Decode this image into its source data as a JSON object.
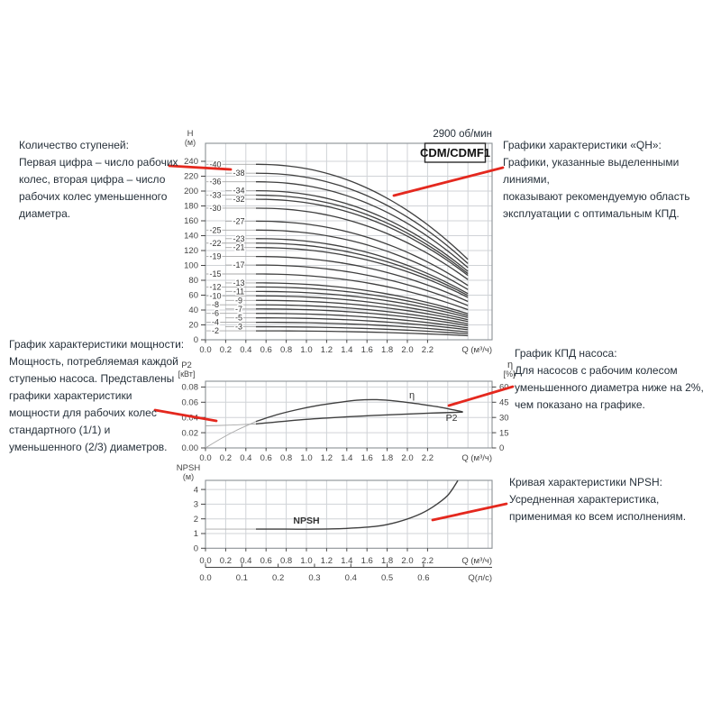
{
  "colors": {
    "red": "#e4281e",
    "curve": "#3f3f3f",
    "curve_light": "#a8a8a8",
    "grid": "#d0d3d7",
    "frame": "#8a8f94",
    "tick_text": "#444444",
    "annotation_text": "#26303a"
  },
  "annotations": {
    "stages": "Количество ступеней:\nПервая цифра – число рабочих\nколес, вторая цифра – число\nрабочих колес уменьшенного\nдиаметра.",
    "qh": "Графики характеристики «QH»:\nГрафики, указанные выделенными линиями,\nпоказывают рекомендуемую область\nэксплуатации с оптимальным КПД.",
    "power": "График характеристики мощности:\nМощность, потребляемая каждой\nступенью насоса. Представлены\nграфики характеристики\nмощности для рабочих колес\nстандартного (1/1) и\nуменьшенного (2/3) диаметров.",
    "efficiency": "График КПД насоса:\nДля насосов с рабочим колесом\nуменьшенного диаметра ниже на 2%,\nчем показано на графике.",
    "npsh": "Кривая характеристики NPSH:\nУсредненная характеристика,\nприменимая ко всем исполнениям."
  },
  "chart_data": [
    {
      "id": "qh",
      "type": "line",
      "title": "CDM/CDMF1",
      "speed_label": "2900 об/мин",
      "xlabel": "Q (м³/ч)",
      "ylabel": "H",
      "ylabel_unit": "(м)",
      "xlim": [
        0,
        2.84
      ],
      "ylim": [
        0,
        264
      ],
      "grid": true,
      "x_ticks": [
        "0.0",
        "0.2",
        "0.4",
        "0.6",
        "0.8",
        "1.0",
        "1.2",
        "1.4",
        "1.6",
        "1.8",
        "2.0",
        "2.2"
      ],
      "y_ticks": [
        0,
        20,
        40,
        60,
        80,
        100,
        120,
        140,
        160,
        180,
        200,
        220,
        240
      ],
      "curve_q_range": [
        0.5,
        2.6
      ],
      "series": [
        {
          "label": "-40",
          "column": "A",
          "h_start": 236,
          "h_end": 108
        },
        {
          "label": "-38",
          "column": "B",
          "h_start": 224,
          "h_end": 102.5
        },
        {
          "label": "-36",
          "column": "A",
          "h_start": 212.5,
          "h_end": 97
        },
        {
          "label": "-34",
          "column": "B",
          "h_start": 200.5,
          "h_end": 92
        },
        {
          "label": "-33",
          "column": "A",
          "h_start": 194.5,
          "h_end": 89
        },
        {
          "label": "-32",
          "column": "B",
          "h_start": 189,
          "h_end": 86.5
        },
        {
          "label": "-30",
          "column": "A",
          "h_start": 177,
          "h_end": 81
        },
        {
          "label": "-27",
          "column": "B",
          "h_start": 159.5,
          "h_end": 73
        },
        {
          "label": "-25",
          "column": "A",
          "h_start": 147.5,
          "h_end": 67.5
        },
        {
          "label": "-23",
          "column": "B",
          "h_start": 136,
          "h_end": 62
        },
        {
          "label": "-22",
          "column": "A",
          "h_start": 130,
          "h_end": 59.5
        },
        {
          "label": "-21",
          "column": "B",
          "h_start": 124,
          "h_end": 57
        },
        {
          "label": "-19",
          "column": "A",
          "h_start": 112,
          "h_end": 51.5
        },
        {
          "label": "-17",
          "column": "B",
          "h_start": 100.5,
          "h_end": 46
        },
        {
          "label": "-15",
          "column": "A",
          "h_start": 88.5,
          "h_end": 40.5
        },
        {
          "label": "-13",
          "column": "B",
          "h_start": 76.5,
          "h_end": 35
        },
        {
          "label": "-12",
          "column": "A",
          "h_start": 71,
          "h_end": 32.5
        },
        {
          "label": "-11",
          "column": "B",
          "h_start": 65,
          "h_end": 30
        },
        {
          "label": "-10",
          "column": "A",
          "h_start": 59,
          "h_end": 27
        },
        {
          "label": "-9",
          "column": "B",
          "h_start": 53,
          "h_end": 24.5
        },
        {
          "label": "-8",
          "column": "A",
          "h_start": 47,
          "h_end": 21.5
        },
        {
          "label": "-7",
          "column": "B",
          "h_start": 41.5,
          "h_end": 19
        },
        {
          "label": "-6",
          "column": "A",
          "h_start": 35.5,
          "h_end": 16
        },
        {
          "label": "-5",
          "column": "B",
          "h_start": 29.5,
          "h_end": 13.5
        },
        {
          "label": "-4",
          "column": "A",
          "h_start": 23.5,
          "h_end": 10.5
        },
        {
          "label": "-3",
          "column": "B",
          "h_start": 17.5,
          "h_end": 8
        },
        {
          "label": "-2",
          "column": "A",
          "h_start": 12,
          "h_end": 5.5
        }
      ]
    },
    {
      "id": "power",
      "type": "line",
      "xlabel": "Q (м³/ч)",
      "ylabel_left": "P2",
      "ylabel_left_unit": "[кВт]",
      "ylabel_right": "η",
      "ylabel_right_unit": "[%]",
      "grid": true,
      "x_ticks": [
        "0.0",
        "0.2",
        "0.4",
        "0.6",
        "0.8",
        "1.0",
        "1.2",
        "1.4",
        "1.6",
        "1.8",
        "2.0",
        "2.2"
      ],
      "y_ticks_left": [
        "0.00",
        "0.02",
        "0.04",
        "0.06",
        "0.08"
      ],
      "y_ticks_right": [
        0,
        15,
        30,
        45,
        60
      ],
      "series": [
        {
          "name": "P2",
          "axis": "left",
          "points": [
            [
              0,
              0.029
            ],
            [
              0.25,
              0.03
            ],
            [
              0.5,
              0.0315
            ],
            [
              1.0,
              0.0375
            ],
            [
              1.5,
              0.0415
            ],
            [
              2.0,
              0.0445
            ],
            [
              2.3,
              0.046
            ],
            [
              2.55,
              0.047
            ]
          ]
        },
        {
          "name": "η",
          "axis": "right",
          "points": [
            [
              0,
              0
            ],
            [
              0.15,
              9
            ],
            [
              0.3,
              17
            ],
            [
              0.5,
              26
            ],
            [
              0.7,
              32.5
            ],
            [
              0.9,
              37.5
            ],
            [
              1.1,
              41.5
            ],
            [
              1.3,
              44.5
            ],
            [
              1.5,
              47
            ],
            [
              1.7,
              47.5
            ],
            [
              1.9,
              46
            ],
            [
              2.1,
              43.5
            ],
            [
              2.3,
              40.5
            ],
            [
              2.55,
              35.5
            ]
          ]
        }
      ]
    },
    {
      "id": "npsh",
      "type": "line",
      "xlabel": "Q (м³/ч)",
      "xlabel2": "Q(л/с)",
      "ylabel": "NPSH",
      "ylabel_unit": "(м)",
      "grid": true,
      "x_ticks": [
        "0.0",
        "0.2",
        "0.4",
        "0.6",
        "0.8",
        "1.0",
        "1.2",
        "1.4",
        "1.6",
        "1.8",
        "2.0",
        "2.2"
      ],
      "x2_ticks": [
        "0.0",
        "0.1",
        "0.2",
        "0.3",
        "0.4",
        "0.5",
        "0.6"
      ],
      "y_ticks": [
        0,
        1,
        2,
        3,
        4
      ],
      "series": [
        {
          "name": "NPSH",
          "points": [
            [
              0,
              1.3
            ],
            [
              0.25,
              1.3
            ],
            [
              0.5,
              1.3
            ],
            [
              0.8,
              1.3
            ],
            [
              1.1,
              1.3
            ],
            [
              1.4,
              1.35
            ],
            [
              1.7,
              1.5
            ],
            [
              1.9,
              1.78
            ],
            [
              2.1,
              2.25
            ],
            [
              2.25,
              2.8
            ],
            [
              2.4,
              3.6
            ],
            [
              2.5,
              4.6
            ]
          ]
        }
      ]
    }
  ]
}
